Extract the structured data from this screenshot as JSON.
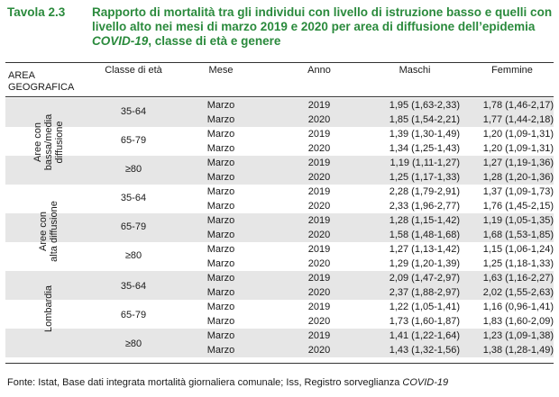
{
  "title": {
    "number": "Tavola 2.3",
    "text": "Rapporto di mortalità tra gli individui con livello di istruzione basso e quelli con livello alto nei mesi di marzo 2019 e 2020 per area di diffusione dell’epidemia",
    "italic": "COVID-19",
    "tail": ", classe di età e genere"
  },
  "headers": {
    "area_line1": "AREA",
    "area_line2": "GEOGRAFICA",
    "classe": "Classe di età",
    "mese": "Mese",
    "anno": "Anno",
    "maschi": "Maschi",
    "femmine": "Femmine"
  },
  "areas": [
    {
      "label_line1": "Aree con",
      "label_line2": "bassa/media",
      "label_line3": "diffusione"
    },
    {
      "label_line1": "Aree con",
      "label_line2": "alta diffusione",
      "label_line3": ""
    },
    {
      "label_line1": "Lombardia",
      "label_line2": "",
      "label_line3": ""
    }
  ],
  "classes": [
    "35-64",
    "65-79",
    "≥80",
    "35-64",
    "65-79",
    "≥80",
    "35-64",
    "65-79",
    "≥80"
  ],
  "rows": [
    {
      "mese": "Marzo",
      "anno": "2019",
      "maschi": "1,95 (1,63-2,33)",
      "femmine": "1,78 (1,46-2,17)"
    },
    {
      "mese": "Marzo",
      "anno": "2020",
      "maschi": "1,85 (1,54-2,21)",
      "femmine": "1,77 (1,44-2,18)"
    },
    {
      "mese": "Marzo",
      "anno": "2019",
      "maschi": "1,39 (1,30-1,49)",
      "femmine": "1,20 (1,09-1,31)"
    },
    {
      "mese": "Marzo",
      "anno": "2020",
      "maschi": "1,34 (1,25-1,43)",
      "femmine": "1,20 (1,09-1,31)"
    },
    {
      "mese": "Marzo",
      "anno": "2019",
      "maschi": "1,19 (1,11-1,27)",
      "femmine": "1,27 (1,19-1,36)"
    },
    {
      "mese": "Marzo",
      "anno": "2020",
      "maschi": "1,25 (1,17-1,33)",
      "femmine": "1,28 (1,20-1,36)"
    },
    {
      "mese": "Marzo",
      "anno": "2019",
      "maschi": "2,28 (1,79-2,91)",
      "femmine": "1,37 (1,09-1,73)"
    },
    {
      "mese": "Marzo",
      "anno": "2020",
      "maschi": "2,33 (1,96-2,77)",
      "femmine": "1,76 (1,45-2,15)"
    },
    {
      "mese": "Marzo",
      "anno": "2019",
      "maschi": "1,28 (1,15-1,42)",
      "femmine": "1,19 (1,05-1,35)"
    },
    {
      "mese": "Marzo",
      "anno": "2020",
      "maschi": "1,58 (1,48-1,68)",
      "femmine": "1,68 (1,53-1,85)"
    },
    {
      "mese": "Marzo",
      "anno": "2019",
      "maschi": "1,27 (1,13-1,42)",
      "femmine": "1,15 (1,06-1,24)"
    },
    {
      "mese": "Marzo",
      "anno": "2020",
      "maschi": "1,29 (1,20-1,39)",
      "femmine": "1,25 (1,18-1,33)"
    },
    {
      "mese": "Marzo",
      "anno": "2019",
      "maschi": "2,09 (1,47-2,97)",
      "femmine": "1,63 (1,16-2,27)"
    },
    {
      "mese": "Marzo",
      "anno": "2020",
      "maschi": "2,37 (1,88-2,97)",
      "femmine": "2,02 (1,55-2,63)"
    },
    {
      "mese": "Marzo",
      "anno": "2019",
      "maschi": "1,22 (1,05-1,41)",
      "femmine": "1,16 (0,96-1,41)"
    },
    {
      "mese": "Marzo",
      "anno": "2020",
      "maschi": "1,73 (1,60-1,87)",
      "femmine": "1,83 (1,60-2,09)"
    },
    {
      "mese": "Marzo",
      "anno": "2019",
      "maschi": "1,41 (1,22-1,64)",
      "femmine": "1,23 (1,09-1,38)"
    },
    {
      "mese": "Marzo",
      "anno": "2020",
      "maschi": "1,43 (1,32-1,56)",
      "femmine": "1,38 (1,28-1,49)"
    }
  ],
  "footnote": {
    "text": "Fonte: Istat, Base dati integrata mortalità giornaliera comunale; Iss, Registro sorveglianza ",
    "italic": "COVID-19"
  },
  "colors": {
    "title": "#2a8a3c",
    "band": "#e6e6e6"
  }
}
